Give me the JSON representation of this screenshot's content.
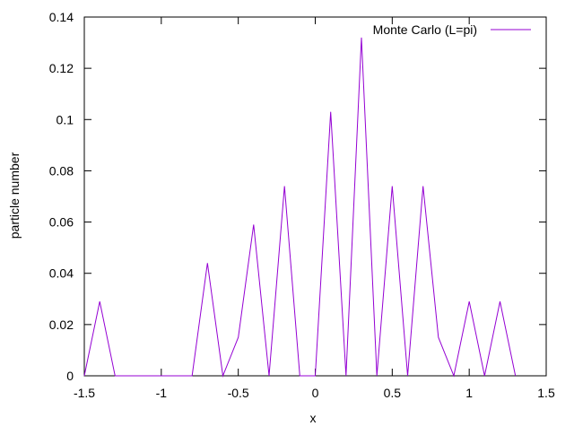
{
  "chart_data": {
    "type": "line",
    "title": "",
    "xlabel": "x",
    "ylabel": "particle number",
    "xlim": [
      -1.5,
      1.5
    ],
    "ylim": [
      0,
      0.14
    ],
    "x_ticks": [
      -1.5,
      -1,
      -0.5,
      0,
      0.5,
      1,
      1.5
    ],
    "x_tick_labels": [
      "-1.5",
      "-1",
      "-0.5",
      "0",
      "0.5",
      "1",
      "1.5"
    ],
    "y_ticks": [
      0,
      0.02,
      0.04,
      0.06,
      0.08,
      0.1,
      0.12,
      0.14
    ],
    "y_tick_labels": [
      "0",
      "0.02",
      "0.04",
      "0.06",
      "0.08",
      "0.1",
      "0.12",
      "0.14"
    ],
    "grid": false,
    "legend_position": "top-right",
    "series": [
      {
        "name": "Monte Carlo (L=pi)",
        "color": "#9400d3",
        "x": [
          -1.5,
          -1.4,
          -1.3,
          -1.2,
          -1.1,
          -1.0,
          -0.9,
          -0.8,
          -0.7,
          -0.6,
          -0.5,
          -0.4,
          -0.3,
          -0.2,
          -0.1,
          0.0,
          0.1,
          0.2,
          0.3,
          0.4,
          0.5,
          0.6,
          0.7,
          0.8,
          0.9,
          1.0,
          1.1,
          1.2,
          1.3
        ],
        "y": [
          0,
          0.029,
          0,
          0,
          0,
          0,
          0,
          0,
          0.044,
          0,
          0.015,
          0.059,
          0,
          0.074,
          0,
          0,
          0.103,
          0,
          0.132,
          0,
          0.074,
          0,
          0.074,
          0.015,
          0,
          0.029,
          0,
          0.029,
          0
        ]
      }
    ]
  }
}
